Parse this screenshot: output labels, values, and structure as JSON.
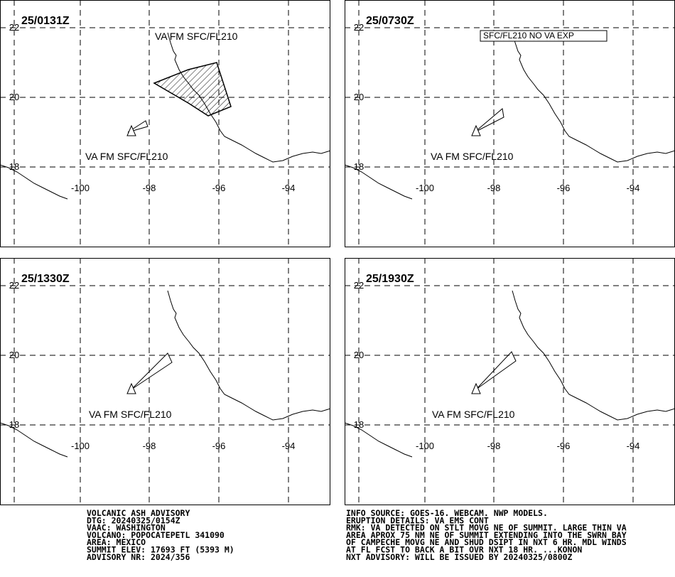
{
  "grid": {
    "lon": [
      "-100",
      "-98",
      "-96",
      "-94"
    ],
    "lat": [
      "22",
      "20",
      "18"
    ]
  },
  "panels": [
    {
      "time": "25/0131Z",
      "labels": [
        "VA FM SFC/FL210",
        "VA FM SFC/FL210"
      ]
    },
    {
      "time": "25/0730Z",
      "labels": [
        "SFC/FL210 NO VA EXP",
        "VA FM SFC/FL210"
      ]
    },
    {
      "time": "25/1330Z",
      "labels": [
        "VA FM SFC/FL210"
      ]
    },
    {
      "time": "25/1930Z",
      "labels": [
        "VA FM SFC/FL210"
      ]
    }
  ],
  "footer": {
    "left": [
      "VOLCANIC ASH ADVISORY",
      "DTG: 20240325/0154Z",
      "VAAC: WASHINGTON",
      "VOLCANO: POPOCATEPETL 341090",
      "AREA: MEXICO",
      "SUMMIT ELEV: 17693 FT (5393 M)",
      "ADVISORY NR: 2024/356"
    ],
    "right": [
      "INFO SOURCE: GOES-16. WEBCAM. NWP MODELS.",
      "ERUPTION DETAILS: VA EMS CONT",
      "RMK: VA DETECTED ON STLT MOVG NE OF SUMMIT. LARGE THIN VA",
      "AREA APROX 75 NM NE OF SUMMIT EXTENDING INTO THE SWRN BAY",
      "OF CAMPECHE MOVG NE AND SHUD DSIPT IN NXT 6 HR. MDL WINDS",
      "AT FL FCST TO BACK A BIT OVR NXT 18 HR. ...KONON",
      "NXT ADVISORY: WILL BE ISSUED BY 20240325/0800Z"
    ]
  }
}
